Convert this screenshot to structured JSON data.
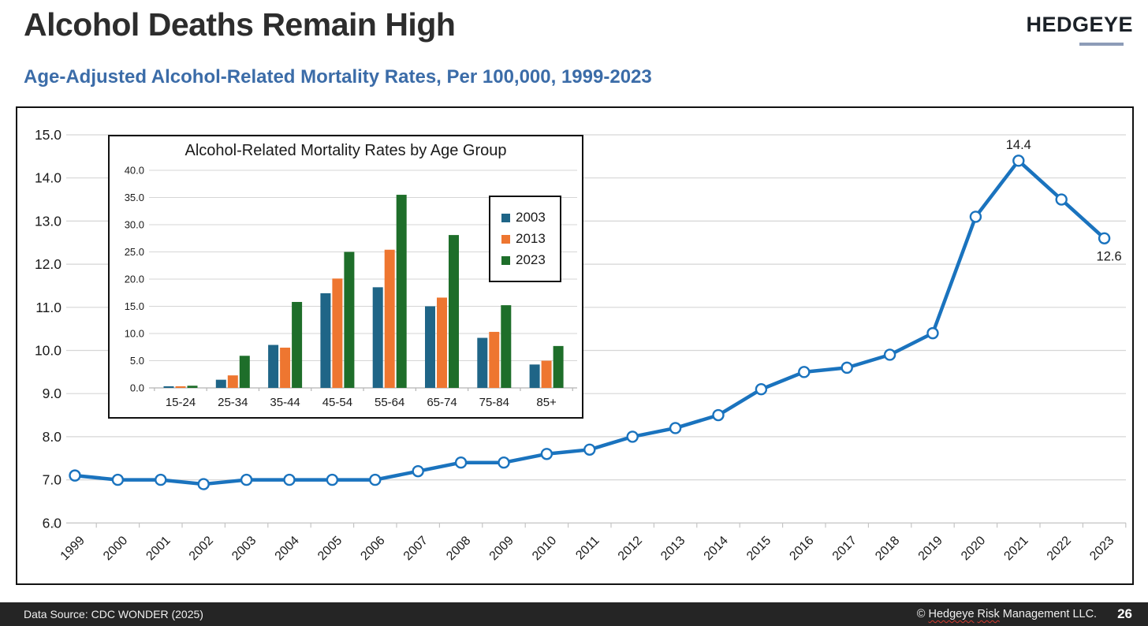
{
  "header": {
    "title": "Alcohol Deaths Remain High",
    "subtitle": "Age-Adjusted Alcohol-Related Mortality Rates, Per 100,000, 1999-2023",
    "logo": "HEDGEYE"
  },
  "footer": {
    "source": "Data Source: CDC WONDER (2025)",
    "copyright_symbol": "©",
    "copyright_word_1": "Hedgeye",
    "copyright_word_2": "Risk",
    "copyright_rest": "Management LLC.",
    "page": "26"
  },
  "colors": {
    "line_blue": "#1a73be",
    "bar_blue": "#1f6587",
    "bar_orange": "#ee7630",
    "bar_green": "#1e6e2a",
    "gridline": "#d6d6d6",
    "axis": "#c4c4c4",
    "subtitle_blue": "#3b6ca8",
    "footer_bg": "#252525"
  },
  "chart_data": [
    {
      "type": "line",
      "name": "age-adjusted-alcohol-mortality-1999-2023",
      "x": [
        "1999",
        "2000",
        "2001",
        "2002",
        "2003",
        "2004",
        "2005",
        "2006",
        "2007",
        "2008",
        "2009",
        "2010",
        "2011",
        "2012",
        "2013",
        "2014",
        "2015",
        "2016",
        "2017",
        "2018",
        "2019",
        "2020",
        "2021",
        "2022",
        "2023"
      ],
      "values": [
        7.1,
        7.0,
        7.0,
        6.9,
        7.0,
        7.0,
        7.0,
        7.0,
        7.2,
        7.4,
        7.4,
        7.6,
        7.7,
        8.0,
        8.2,
        8.5,
        9.1,
        9.5,
        9.6,
        9.9,
        10.4,
        13.1,
        14.4,
        13.5,
        12.6
      ],
      "ylim": [
        6.0,
        15.0
      ],
      "ytick_step": 1.0,
      "grid": true,
      "legend": "none",
      "line_color": "#1a73be",
      "marker": "open-circle",
      "annotations": [
        {
          "x": "2021",
          "text": "14.4",
          "position": "above"
        },
        {
          "x": "2023",
          "text": "12.6",
          "position": "below"
        }
      ]
    },
    {
      "type": "bar",
      "title": "Alcohol-Related Mortality Rates by Age Group",
      "categories": [
        "15-24",
        "25-34",
        "35-44",
        "45-54",
        "55-64",
        "65-74",
        "75-84",
        "85+"
      ],
      "series": [
        {
          "name": "2003",
          "color": "#1f6587",
          "values": [
            0.3,
            1.5,
            7.9,
            17.4,
            18.5,
            15.0,
            9.2,
            4.3
          ]
        },
        {
          "name": "2013",
          "color": "#ee7630",
          "values": [
            0.3,
            2.3,
            7.4,
            20.1,
            25.4,
            16.6,
            10.3,
            5.0
          ]
        },
        {
          "name": "2023",
          "color": "#1e6e2a",
          "values": [
            0.4,
            5.9,
            15.8,
            25.0,
            35.5,
            28.1,
            15.2,
            7.7
          ]
        }
      ],
      "ylim": [
        0.0,
        40.0
      ],
      "ytick_step": 5.0,
      "grid": true,
      "legend_position": "upper-right"
    }
  ]
}
